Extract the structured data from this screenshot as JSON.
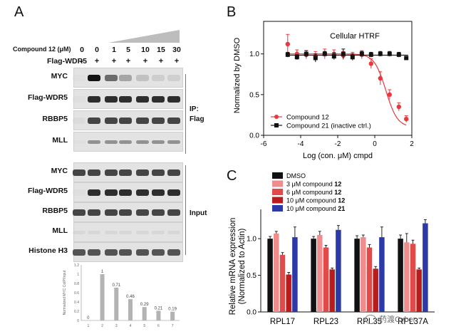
{
  "panels": {
    "a": "A",
    "b": "B",
    "c": "C"
  },
  "panel_a": {
    "compound_label": "Compound 12 (μM)",
    "flag_label": "Flag-WDR5",
    "concentrations": [
      "0",
      "0",
      "1",
      "5",
      "10",
      "15",
      "30"
    ],
    "flag_signs": [
      "-",
      "+",
      "+",
      "+",
      "+",
      "+",
      "+"
    ],
    "ip_rows": [
      "MYC",
      "Flag-WDR5",
      "RBBP5",
      "MLL"
    ],
    "input_rows": [
      "MYC",
      "Flag-WDR5",
      "RBBP5",
      "MLL",
      "Histone H3"
    ],
    "ip_group_label": [
      "IP:",
      "Flag"
    ],
    "input_group_label": "Input",
    "myc_intensity": [
      0.05,
      1,
      0.71,
      0.46,
      0.29,
      0.21,
      0.19
    ]
  },
  "chart_data": [
    {
      "type": "bar",
      "title": "",
      "ylabel": "Normalized MYC CoIP/Input",
      "categories": [
        "1",
        "2",
        "3",
        "4",
        "5",
        "6",
        "7"
      ],
      "values": [
        0,
        1,
        0.71,
        0.46,
        0.29,
        0.21,
        0.19
      ],
      "labels": [
        "0",
        "1",
        "0.71",
        "0.46",
        "0.29",
        "0.21",
        "0.19"
      ],
      "yticks": [
        "0",
        "0.2",
        "0.4",
        "0.6",
        "0.8",
        "1",
        "1.2"
      ],
      "ylim": [
        0,
        1.2
      ],
      "color": "#b3b3b3"
    },
    {
      "type": "scatter",
      "title": "Cellular HTRF",
      "xlabel": "Log (con. μM) cmpd",
      "ylabel": "Normalized by DMSO",
      "xlim": [
        -6,
        2
      ],
      "ylim": [
        0,
        1.4
      ],
      "xticks": [
        "-6",
        "-4",
        "-2",
        "0",
        "2"
      ],
      "yticks": [
        "0.0",
        "0.5",
        "1.0"
      ],
      "series": [
        {
          "name": "Compound 12",
          "color": "#e8383d",
          "x": [
            -4.7,
            -4.2,
            -3.7,
            -3.2,
            -2.7,
            -2.2,
            -1.7,
            -1.2,
            -0.7,
            -0.2,
            0.3,
            0.8,
            1.3,
            1.7
          ],
          "y": [
            1.12,
            1.0,
            0.99,
            0.97,
            1.0,
            1.0,
            0.98,
            0.98,
            0.99,
            0.88,
            0.7,
            0.5,
            0.35,
            0.2
          ],
          "err": [
            0.12,
            0.05,
            0.05,
            0.06,
            0.06,
            0.05,
            0.05,
            0.04,
            0.05,
            0.06,
            0.08,
            0.06,
            0.05,
            0.04
          ],
          "fit": {
            "top": 1.0,
            "bottom": 0.1,
            "logec50": 0.6,
            "hill": 1.4
          }
        },
        {
          "name": "Compound 21 (inactive ctrl.)",
          "color": "#111111",
          "x": [
            -4.7,
            -4.2,
            -3.7,
            -3.2,
            -2.7,
            -2.2,
            -1.7,
            -1.2,
            -0.7,
            -0.2,
            0.3,
            0.8,
            1.3,
            1.7
          ],
          "y": [
            0.99,
            0.96,
            1.0,
            0.95,
            1.0,
            0.97,
            1.0,
            0.96,
            1.0,
            0.99,
            1.0,
            1.0,
            0.99,
            0.95
          ],
          "err": [
            0.03,
            0.03,
            0.04,
            0.05,
            0.03,
            0.04,
            0.06,
            0.04,
            0.03,
            0.03,
            0.03,
            0.03,
            0.03,
            0.02
          ]
        }
      ]
    },
    {
      "type": "bar",
      "title": "",
      "ylabel": "Relative mRNA expression (Normalized to Actin)",
      "ylabel_lines": [
        "Relative mRNA expression",
        "(Normalized to Actin)"
      ],
      "categories": [
        "RPL17",
        "RPL23",
        "RPL35",
        "RPL37A"
      ],
      "yticks": [
        "0.0",
        "0.5",
        "1.0"
      ],
      "ylim": [
        0,
        1.4
      ],
      "series": [
        {
          "name": "DMSO",
          "name_plain": "DMSO",
          "name_bold": "",
          "color": "#111111",
          "values": [
            1.0,
            1.0,
            1.0,
            1.0
          ],
          "err": [
            0.03,
            0.03,
            0.04,
            0.05
          ]
        },
        {
          "name": "3 μM compound 12",
          "name_plain": "3 μM compound ",
          "name_bold": "12",
          "color": "#f08c8c",
          "values": [
            1.07,
            1.05,
            1.02,
            0.95
          ],
          "err": [
            0.03,
            0.05,
            0.03,
            0.12
          ]
        },
        {
          "name": "6 μM compound 12",
          "name_plain": "6 μM compound ",
          "name_bold": "12",
          "color": "#e24a4a",
          "values": [
            0.78,
            0.88,
            0.88,
            0.93
          ],
          "err": [
            0.03,
            0.03,
            0.04,
            0.05
          ]
        },
        {
          "name": "10 μM compound 12",
          "name_plain": "10 μM compound ",
          "name_bold": "12",
          "color": "#b81c1c",
          "values": [
            0.51,
            0.58,
            0.59,
            0.58
          ],
          "err": [
            0.03,
            0.02,
            0.03,
            0.02
          ]
        },
        {
          "name": "10 μM compound 21",
          "name_plain": "10 μM compound ",
          "name_bold": "21",
          "color": "#2c3aa8",
          "values": [
            1.02,
            1.12,
            1.02,
            1.21
          ],
          "err": [
            0.14,
            0.06,
            0.14,
            0.05
          ]
        }
      ]
    }
  ],
  "watermark": "药渡Cyber"
}
